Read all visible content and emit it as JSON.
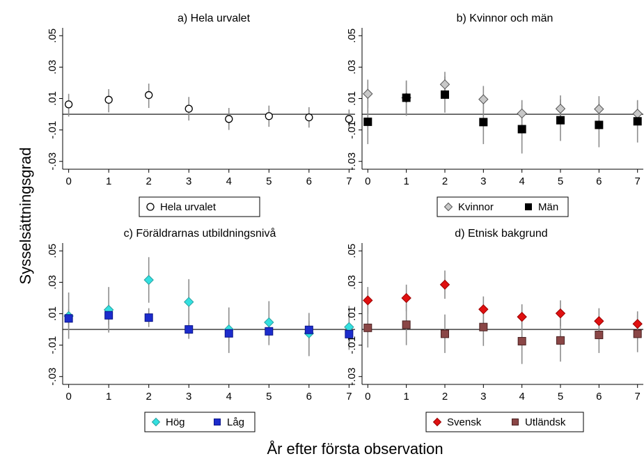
{
  "figure": {
    "ylabel": "Sysselsättningsgrad",
    "xlabel": "År efter första observation"
  },
  "colors": {
    "open_marker": "#ffffff",
    "kvinnor": "#c8c8c8",
    "man": "#000000",
    "hog": "#33e0e0",
    "lag": "#1c2ccc",
    "svensk": "#e01010",
    "utlandsk": "#8a4646",
    "ci": "#8c8c8c"
  },
  "chart_data": [
    {
      "type": "scatter",
      "title": "a) Hela urvalet",
      "x": [
        0,
        1,
        2,
        3,
        4,
        5,
        6,
        7
      ],
      "ylim": [
        -0.035,
        0.055
      ],
      "yticks": [
        ".05",
        ".03",
        ".01",
        "-.01",
        "-.03"
      ],
      "xticks": [
        "0",
        "1",
        "2",
        "3",
        "4",
        "5",
        "6",
        "7"
      ],
      "series": [
        {
          "name": "Hela urvalet",
          "marker": "circle",
          "values": [
            0.0063,
            0.0092,
            0.0122,
            0.0035,
            -0.003,
            -0.0012,
            -0.002,
            -0.003
          ],
          "ci_low": [
            -0.0015,
            0.0012,
            0.004,
            -0.004,
            -0.01,
            -0.008,
            -0.0085,
            -0.009
          ],
          "ci_high": [
            0.013,
            0.016,
            0.0195,
            0.011,
            0.004,
            0.0055,
            0.0045,
            0.003
          ]
        }
      ]
    },
    {
      "type": "scatter",
      "title": "b) Kvinnor och män",
      "x": [
        0,
        1,
        2,
        3,
        4,
        5,
        6,
        7
      ],
      "ylim": [
        -0.035,
        0.055
      ],
      "yticks": [
        ".05",
        ".03",
        ".01",
        "-.01",
        "-.03"
      ],
      "xticks": [
        "0",
        "1",
        "2",
        "3",
        "4",
        "5",
        "6",
        "7"
      ],
      "series": [
        {
          "name": "Kvinnor",
          "marker": "diamond",
          "values": [
            0.013,
            0.0105,
            0.019,
            0.0095,
            0.0005,
            0.0035,
            0.0033,
            0.0003
          ],
          "ci_low": [
            0.004,
            -0.001,
            0.011,
            0.001,
            -0.008,
            -0.005,
            -0.005,
            -0.008
          ],
          "ci_high": [
            0.022,
            0.021,
            0.027,
            0.018,
            0.009,
            0.012,
            0.0115,
            0.0085
          ]
        },
        {
          "name": "Män",
          "marker": "square",
          "values": [
            -0.0048,
            0.0105,
            0.0125,
            -0.005,
            -0.0095,
            -0.0038,
            -0.0068,
            -0.0045
          ],
          "ci_low": [
            -0.019,
            0.0,
            0.001,
            -0.019,
            -0.025,
            -0.017,
            -0.021,
            -0.018
          ],
          "ci_high": [
            0.0095,
            0.0215,
            0.024,
            0.009,
            0.006,
            0.0095,
            0.0075,
            0.009
          ]
        }
      ]
    },
    {
      "type": "scatter",
      "title": "c) Föräldrarnas utbildningsnivå",
      "x": [
        0,
        1,
        2,
        3,
        4,
        5,
        6,
        7
      ],
      "ylim": [
        -0.035,
        0.055
      ],
      "yticks": [
        ".05",
        ".03",
        ".01",
        "-.01",
        "-.03"
      ],
      "xticks": [
        "0",
        "1",
        "2",
        "3",
        "4",
        "5",
        "6",
        "7"
      ],
      "series": [
        {
          "name": "Hög",
          "marker": "diamond",
          "values": [
            0.0085,
            0.0125,
            0.0315,
            0.0175,
            0.0,
            0.0045,
            -0.0025,
            0.0015
          ],
          "ci_low": [
            -0.006,
            -0.002,
            0.017,
            0.003,
            -0.015,
            -0.01,
            -0.017,
            -0.013
          ],
          "ci_high": [
            0.0235,
            0.027,
            0.046,
            0.032,
            0.014,
            0.018,
            0.0105,
            0.015
          ]
        },
        {
          "name": "Låg",
          "marker": "square",
          "values": [
            0.007,
            0.009,
            0.0075,
            0.0,
            -0.0025,
            -0.0012,
            -0.0003,
            -0.003
          ],
          "ci_low": [
            0.001,
            0.003,
            0.0015,
            -0.006,
            -0.008,
            -0.007,
            -0.006,
            -0.009
          ],
          "ci_high": [
            0.013,
            0.015,
            0.0135,
            0.006,
            0.003,
            0.0046,
            0.0054,
            0.003
          ]
        }
      ]
    },
    {
      "type": "scatter",
      "title": "d) Etnisk bakgrund",
      "x": [
        0,
        1,
        2,
        3,
        4,
        5,
        6,
        7
      ],
      "ylim": [
        -0.035,
        0.055
      ],
      "yticks": [
        ".05",
        ".03",
        ".01",
        "-.01",
        "-.03"
      ],
      "xticks": [
        "0",
        "1",
        "2",
        "3",
        "4",
        "5",
        "6",
        "7"
      ],
      "series": [
        {
          "name": "Svensk",
          "marker": "diamond",
          "values": [
            0.0185,
            0.02,
            0.0285,
            0.0128,
            0.008,
            0.0102,
            0.0053,
            0.0035
          ],
          "ci_low": [
            0.01,
            0.0115,
            0.0195,
            0.0045,
            0.0,
            0.002,
            -0.003,
            -0.0045
          ],
          "ci_high": [
            0.027,
            0.0285,
            0.0375,
            0.021,
            0.016,
            0.0185,
            0.0135,
            0.0115
          ]
        },
        {
          "name": "Utländsk",
          "marker": "square",
          "values": [
            0.001,
            0.003,
            -0.0028,
            0.0015,
            -0.0075,
            -0.007,
            -0.0035,
            -0.0028
          ],
          "ci_low": [
            -0.0115,
            -0.01,
            -0.015,
            -0.0105,
            -0.022,
            -0.0205,
            -0.015,
            -0.0145
          ],
          "ci_high": [
            0.0135,
            0.016,
            0.0095,
            0.0135,
            0.007,
            0.0065,
            0.008,
            0.009
          ]
        }
      ]
    }
  ]
}
